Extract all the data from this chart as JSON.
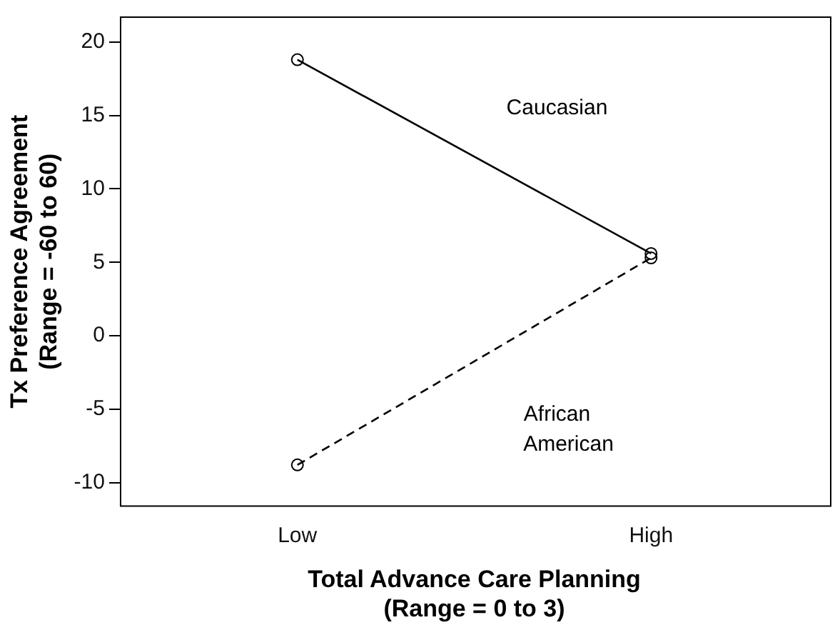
{
  "chart_data": {
    "type": "line",
    "xlabel": "Total Advance Care Planning\n(Range = 0 to 3)",
    "ylabel": "Tx Preference Agreement\n(Range = -60 to 60)",
    "categories": [
      "Low",
      "High"
    ],
    "series": [
      {
        "name": "Caucasian",
        "color": "#000000",
        "values": [
          18.8,
          5.6
        ],
        "line_style": "solid"
      },
      {
        "name": "African American",
        "color": "#000000",
        "values": [
          -8.8,
          5.3
        ],
        "line_style": "dashed"
      }
    ],
    "ylim": [
      -11.6,
      21.7
    ],
    "yticks": [
      -10,
      -5,
      0,
      5,
      10,
      15,
      20
    ],
    "grid": false,
    "legend": false,
    "marker": "circle"
  }
}
